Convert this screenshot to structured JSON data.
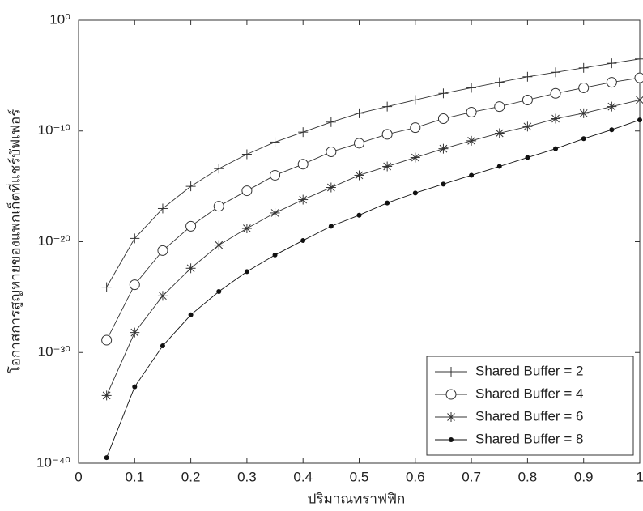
{
  "chart_data": {
    "type": "line",
    "xlabel": "ปริมาณทราฟฟิก",
    "ylabel": "โอกาสการสูญหายของแพกเก็ตที่แชร์บัฟเฟอร์",
    "x": [
      0.05,
      0.1,
      0.15,
      0.2,
      0.25,
      0.3,
      0.35,
      0.4,
      0.45,
      0.5,
      0.55,
      0.6,
      0.65,
      0.7,
      0.75,
      0.8,
      0.85,
      0.9,
      0.95,
      1.0
    ],
    "series": [
      {
        "name": "Shared Buffer = 2",
        "color": "#333333",
        "marker": "+",
        "values": [
          7.9e-25,
          2e-20,
          1e-17,
          1e-15,
          4e-14,
          7.9e-13,
          1e-11,
          7.9e-11,
          6.3e-10,
          4e-09,
          1.6e-08,
          6.3e-08,
          2.5e-07,
          7.9e-07,
          2.5e-06,
          7.9e-06,
          2e-05,
          5e-05,
          0.00013,
          0.00032
        ]
      },
      {
        "name": "Shared Buffer = 4",
        "color": "#333333",
        "marker": "o",
        "values": [
          1.3e-29,
          1.3e-24,
          1.6e-21,
          2.5e-19,
          1.6e-17,
          4e-16,
          1e-14,
          1e-13,
          1.3e-12,
          7.9e-12,
          5e-11,
          2e-10,
          1.3e-09,
          5e-09,
          1.6e-08,
          6.3e-08,
          2.5e-07,
          7.9e-07,
          2.5e-06,
          6.3e-06
        ]
      },
      {
        "name": "Shared Buffer = 6",
        "color": "#333333",
        "marker": "*",
        "values": [
          1.3e-34,
          6.3e-29,
          1.3e-25,
          4e-23,
          5e-21,
          1.6e-19,
          4e-18,
          6.3e-17,
          7.9e-16,
          1e-14,
          6.3e-14,
          4e-13,
          2.5e-12,
          1.3e-11,
          6.3e-11,
          2.5e-10,
          1.3e-09,
          4e-09,
          1.6e-08,
          6.3e-08
        ]
      },
      {
        "name": "Shared Buffer = 8",
        "color": "#111111",
        "marker": ".",
        "values": [
          3.2e-40,
          7.9e-34,
          4e-30,
          2.5e-27,
          3.2e-25,
          2e-23,
          6.3e-22,
          1.3e-20,
          2.5e-19,
          2.5e-18,
          3.2e-17,
          2.5e-16,
          1.6e-15,
          1e-14,
          6.3e-14,
          4e-13,
          2.5e-12,
          2e-11,
          1.3e-10,
          1e-09
        ]
      }
    ],
    "xlim": [
      0,
      1
    ],
    "xticks": [
      0,
      0.1,
      0.2,
      0.3,
      0.4,
      0.5,
      0.6,
      0.7,
      0.8,
      0.9,
      1
    ],
    "ylim": [
      1e-40,
      1
    ],
    "yticks": [
      {
        "value": 1e-40,
        "label": "10⁻⁴⁰"
      },
      {
        "value": 1e-30,
        "label": "10⁻³⁰"
      },
      {
        "value": 1e-20,
        "label": "10⁻²⁰"
      },
      {
        "value": 1e-10,
        "label": "10⁻¹⁰"
      },
      {
        "value": 1,
        "label": "10⁰"
      }
    ],
    "yscale": "log",
    "grid": false,
    "legend": "lower right"
  }
}
